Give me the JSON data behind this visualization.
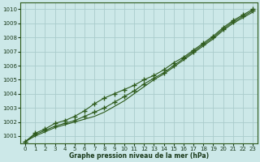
{
  "background_color": "#cce8e8",
  "plot_bg_color": "#cce8e8",
  "grid_color": "#aacccc",
  "line_color": "#2d5a1b",
  "marker_color": "#2d5a1b",
  "xlabel": "Graphe pression niveau de la mer (hPa)",
  "ylim": [
    1000.5,
    1010.5
  ],
  "xlim": [
    -0.5,
    23.5
  ],
  "yticks": [
    1001,
    1002,
    1003,
    1004,
    1005,
    1006,
    1007,
    1008,
    1009,
    1010
  ],
  "xticks": [
    0,
    1,
    2,
    3,
    4,
    5,
    6,
    7,
    8,
    9,
    10,
    11,
    12,
    13,
    14,
    15,
    16,
    17,
    18,
    19,
    20,
    21,
    22,
    23
  ],
  "series_main": {
    "x": [
      0,
      1,
      2,
      3,
      4,
      5,
      6,
      7,
      8,
      9,
      10,
      11,
      12,
      13,
      14,
      15,
      16,
      17,
      18,
      19,
      20,
      21,
      22,
      23
    ],
    "y": [
      1000.6,
      1001.1,
      1001.4,
      1001.7,
      1001.9,
      1002.1,
      1002.4,
      1002.7,
      1003.0,
      1003.4,
      1003.8,
      1004.2,
      1004.7,
      1005.1,
      1005.5,
      1006.0,
      1006.5,
      1007.0,
      1007.5,
      1008.0,
      1008.6,
      1009.1,
      1009.5,
      1009.9
    ]
  },
  "series_upper": {
    "x": [
      0,
      1,
      2,
      3,
      4,
      5,
      6,
      7,
      8,
      9,
      10,
      11,
      12,
      13,
      14,
      15,
      16,
      17,
      18,
      19,
      20,
      21,
      22,
      23
    ],
    "y": [
      1000.6,
      1001.2,
      1001.5,
      1001.9,
      1002.1,
      1002.4,
      1002.8,
      1003.3,
      1003.7,
      1004.0,
      1004.3,
      1004.6,
      1005.0,
      1005.3,
      1005.7,
      1006.2,
      1006.6,
      1007.1,
      1007.6,
      1008.1,
      1008.7,
      1009.2,
      1009.6,
      1010.0
    ]
  },
  "series_lower": {
    "x": [
      0,
      1,
      2,
      3,
      4,
      5,
      6,
      7,
      8,
      9,
      10,
      11,
      12,
      13,
      14,
      15,
      16,
      17,
      18,
      19,
      20,
      21,
      22,
      23
    ],
    "y": [
      1000.6,
      1001.0,
      1001.3,
      1001.6,
      1001.8,
      1002.0,
      1002.2,
      1002.4,
      1002.7,
      1003.1,
      1003.5,
      1004.0,
      1004.5,
      1005.0,
      1005.4,
      1005.9,
      1006.4,
      1006.9,
      1007.4,
      1007.9,
      1008.5,
      1009.0,
      1009.4,
      1009.8
    ]
  }
}
